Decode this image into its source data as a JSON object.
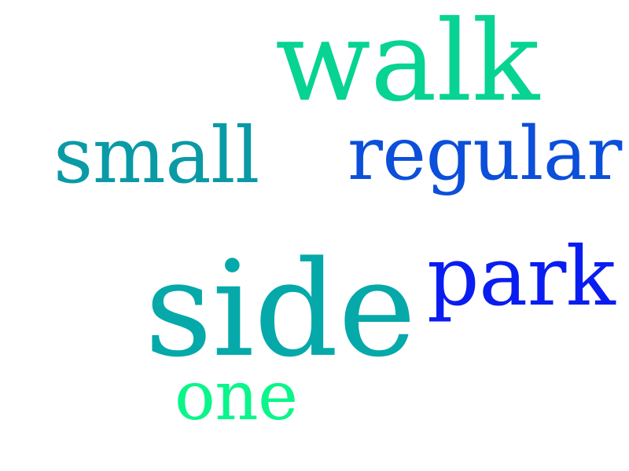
{
  "words": [
    {
      "text": "walk",
      "color": "#07d392"
    },
    {
      "text": "small",
      "color": "#0a9aa6"
    },
    {
      "text": "regular",
      "color": "#0b4fda"
    },
    {
      "text": "side",
      "color": "#06a9aa"
    },
    {
      "text": "park",
      "color": "#0a1df0"
    },
    {
      "text": "one",
      "color": "#0af58a"
    }
  ]
}
